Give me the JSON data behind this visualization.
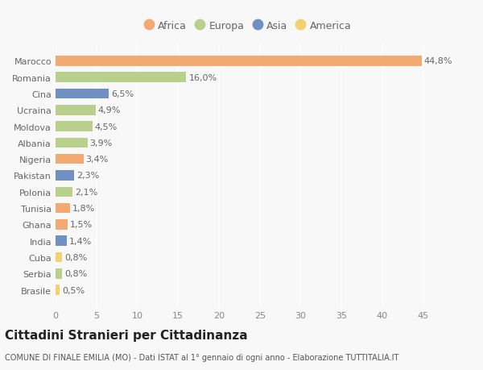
{
  "countries": [
    "Brasile",
    "Serbia",
    "Cuba",
    "India",
    "Ghana",
    "Tunisia",
    "Polonia",
    "Pakistan",
    "Nigeria",
    "Albania",
    "Moldova",
    "Ucraina",
    "Cina",
    "Romania",
    "Marocco"
  ],
  "values": [
    0.5,
    0.8,
    0.8,
    1.4,
    1.5,
    1.8,
    2.1,
    2.3,
    3.4,
    3.9,
    4.5,
    4.9,
    6.5,
    16.0,
    44.8
  ],
  "continents": [
    "America",
    "Europa",
    "America",
    "Asia",
    "Africa",
    "Africa",
    "Europa",
    "Asia",
    "Africa",
    "Europa",
    "Europa",
    "Europa",
    "Asia",
    "Europa",
    "Africa"
  ],
  "colors": {
    "Africa": "#F2AA72",
    "Europa": "#BACF8C",
    "Asia": "#7090C4",
    "America": "#F5D070"
  },
  "legend_order": [
    "Africa",
    "Europa",
    "Asia",
    "America"
  ],
  "title": "Cittadini Stranieri per Cittadinanza",
  "subtitle": "COMUNE DI FINALE EMILIA (MO) - Dati ISTAT al 1° gennaio di ogni anno - Elaborazione TUTTITALIA.IT",
  "xlim": [
    0,
    47
  ],
  "xticks": [
    0,
    5,
    10,
    15,
    20,
    25,
    30,
    35,
    40,
    45
  ],
  "background_color": "#f8f8f8",
  "grid_color": "#ffffff",
  "bar_height": 0.62,
  "label_fontsize": 8,
  "ytick_fontsize": 8,
  "xtick_fontsize": 8,
  "title_fontsize": 11,
  "subtitle_fontsize": 7,
  "legend_fontsize": 9
}
